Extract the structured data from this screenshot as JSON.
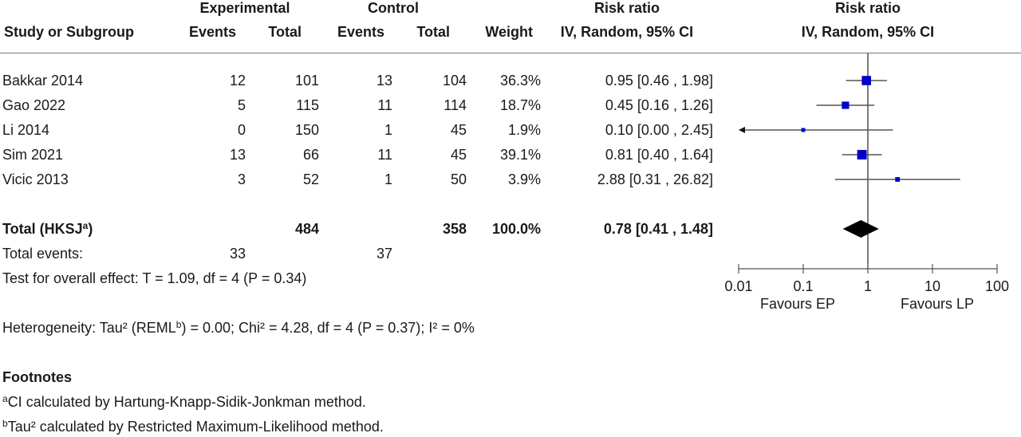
{
  "header": {
    "experimental": "Experimental",
    "control": "Control",
    "rr_table": "Risk ratio",
    "rr_plot": "Risk ratio",
    "study_col": "Study or Subgroup",
    "exp_events": "Events",
    "exp_total": "Total",
    "ctl_events": "Events",
    "ctl_total": "Total",
    "weight": "Weight",
    "method_table": "IV, Random, 95% CI",
    "method_plot": "IV, Random, 95% CI"
  },
  "studies": [
    {
      "name": "Bakkar 2014",
      "exp_events": "12",
      "exp_total": "101",
      "ctl_events": "13",
      "ctl_total": "104",
      "weight": "36.3%",
      "ci": "0.95 [0.46 , 1.98]"
    },
    {
      "name": "Gao 2022",
      "exp_events": "5",
      "exp_total": "115",
      "ctl_events": "11",
      "ctl_total": "114",
      "weight": "18.7%",
      "ci": "0.45 [0.16 , 1.26]"
    },
    {
      "name": "Li 2014",
      "exp_events": "0",
      "exp_total": "150",
      "ctl_events": "1",
      "ctl_total": "45",
      "weight": "1.9%",
      "ci": "0.10 [0.00 , 2.45]"
    },
    {
      "name": "Sim 2021",
      "exp_events": "13",
      "exp_total": "66",
      "ctl_events": "11",
      "ctl_total": "45",
      "weight": "39.1%",
      "ci": "0.81 [0.40 , 1.64]"
    },
    {
      "name": "Vicic 2013",
      "exp_events": "3",
      "exp_total": "52",
      "ctl_events": "1",
      "ctl_total": "50",
      "weight": "3.9%",
      "ci": "2.88 [0.31 , 26.82]"
    }
  ],
  "total": {
    "label": "Total (HKSJ",
    "label_sup": "a",
    "label_end": ")",
    "exp_total": "484",
    "ctl_total": "358",
    "weight": "100.0%",
    "ci": "0.78 [0.41 , 1.48]"
  },
  "total_events": {
    "label": "Total events:",
    "exp": "33",
    "ctl": "37"
  },
  "overall_effect": "Test for overall effect: T = 1.09, df = 4 (P = 0.34)",
  "heterogeneity": {
    "pre": "Heterogeneity: Tau² (REML",
    "sup": "b",
    "post": ") = 0.00; Chi² = 4.28, df = 4 (P = 0.37); I² = 0%"
  },
  "footnotes": {
    "title": "Footnotes",
    "a_sup": "a",
    "a_text": "CI calculated by Hartung-Knapp-Sidik-Jonkman method.",
    "b_sup": "b",
    "b_text": "Tau² calculated by Restricted Maximum-Likelihood method."
  },
  "chart_data": {
    "type": "forest",
    "x_scale": "log",
    "xlim": [
      0.01,
      100
    ],
    "x_ticks": [
      0.01,
      0.1,
      1,
      10,
      100
    ],
    "x_tick_labels": [
      "0.01",
      "0.1",
      "1",
      "10",
      "100"
    ],
    "favours_left": "Favours EP",
    "favours_right": "Favours LP",
    "reference_line": 1,
    "studies": [
      {
        "name": "Bakkar 2014",
        "rr": 0.95,
        "lower": 0.46,
        "upper": 1.98,
        "weight": 36.3
      },
      {
        "name": "Gao 2022",
        "rr": 0.45,
        "lower": 0.16,
        "upper": 1.26,
        "weight": 18.7
      },
      {
        "name": "Li 2014",
        "rr": 0.1,
        "lower": 0.0,
        "upper": 2.45,
        "weight": 1.9,
        "arrow_left": true
      },
      {
        "name": "Sim 2021",
        "rr": 0.81,
        "lower": 0.4,
        "upper": 1.64,
        "weight": 39.1
      },
      {
        "name": "Vicic 2013",
        "rr": 2.88,
        "lower": 0.31,
        "upper": 26.82,
        "weight": 3.9
      }
    ],
    "pooled": {
      "rr": 0.78,
      "lower": 0.41,
      "upper": 1.48
    },
    "colors": {
      "marker": "#0000c8",
      "diamond": "#000000",
      "line": "#555555"
    }
  }
}
